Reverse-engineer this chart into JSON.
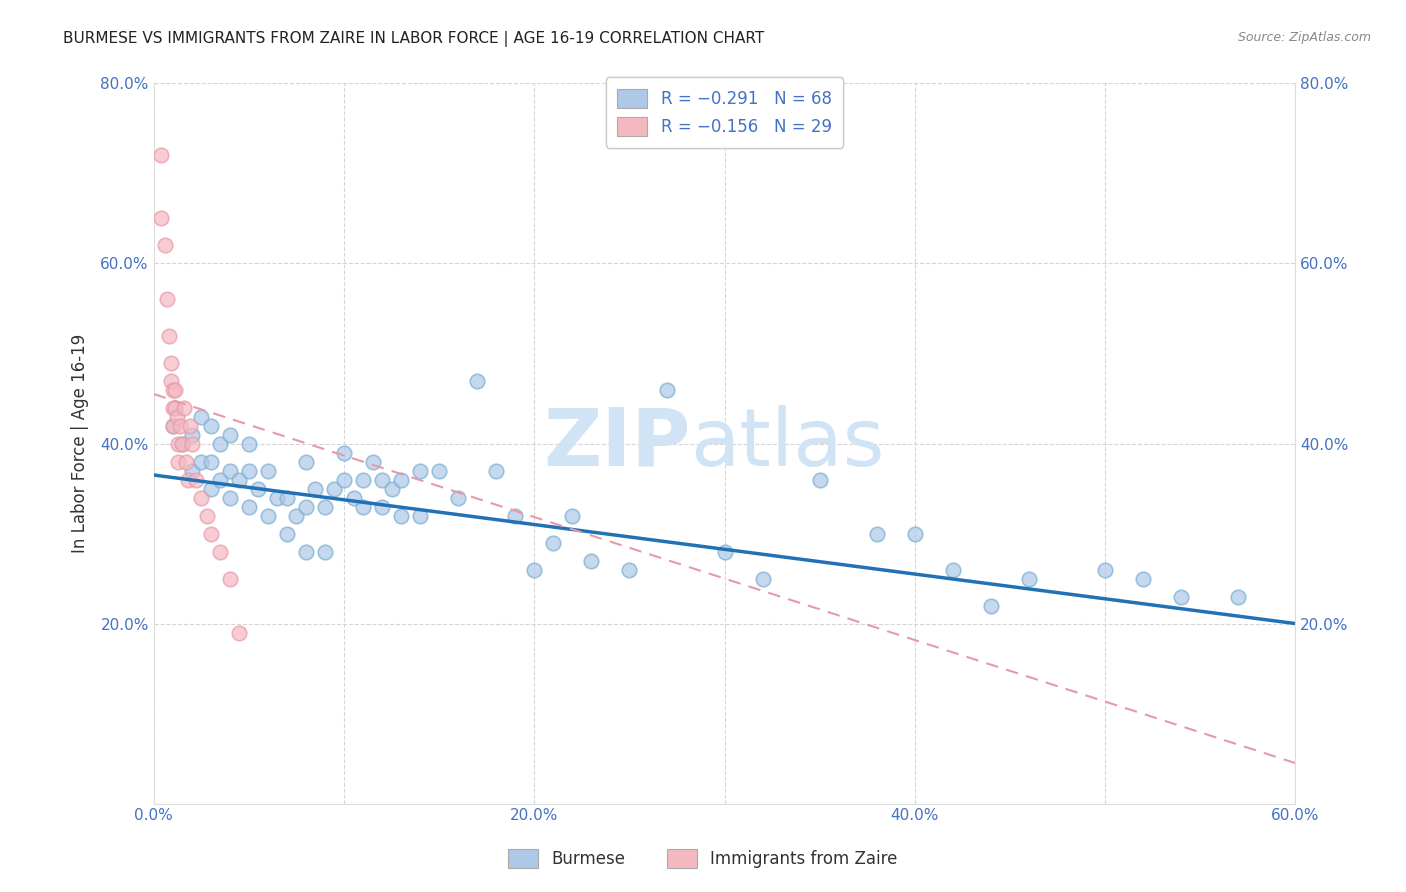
{
  "title": "BURMESE VS IMMIGRANTS FROM ZAIRE IN LABOR FORCE | AGE 16-19 CORRELATION CHART",
  "source": "Source: ZipAtlas.com",
  "ylabel": "In Labor Force | Age 16-19",
  "x_label_burmese": "Burmese",
  "x_label_zaire": "Immigrants from Zaire",
  "xlim": [
    0.0,
    0.6
  ],
  "ylim": [
    0.0,
    0.8
  ],
  "xticks": [
    0.0,
    0.1,
    0.2,
    0.3,
    0.4,
    0.5,
    0.6
  ],
  "yticks": [
    0.0,
    0.2,
    0.4,
    0.6,
    0.8
  ],
  "ytick_labels": [
    "",
    "20.0%",
    "40.0%",
    "60.0%",
    "80.0%"
  ],
  "xtick_labels": [
    "0.0%",
    "",
    "20.0%",
    "",
    "40.0%",
    "",
    "60.0%"
  ],
  "legend_blue_r": "R = −0.291",
  "legend_blue_n": "N = 68",
  "legend_pink_r": "R = −0.156",
  "legend_pink_n": "N = 29",
  "blue_color": "#aec8e8",
  "blue_edge_color": "#7aafd4",
  "blue_line_color": "#2171b5",
  "pink_color": "#f4b8c1",
  "pink_edge_color": "#e899a8",
  "pink_line_color": "#e899a8",
  "axis_color": "#4472c4",
  "watermark_zip": "ZIP",
  "watermark_atlas": "atlas",
  "watermark_color": "#d0e4f5",
  "blue_scatter_x": [
    0.01,
    0.015,
    0.02,
    0.02,
    0.025,
    0.025,
    0.03,
    0.03,
    0.03,
    0.035,
    0.035,
    0.04,
    0.04,
    0.04,
    0.045,
    0.05,
    0.05,
    0.05,
    0.055,
    0.06,
    0.06,
    0.065,
    0.07,
    0.07,
    0.075,
    0.08,
    0.08,
    0.08,
    0.085,
    0.09,
    0.09,
    0.095,
    0.1,
    0.1,
    0.105,
    0.11,
    0.11,
    0.115,
    0.12,
    0.12,
    0.125,
    0.13,
    0.13,
    0.14,
    0.14,
    0.15,
    0.16,
    0.17,
    0.18,
    0.19,
    0.2,
    0.21,
    0.22,
    0.23,
    0.25,
    0.27,
    0.3,
    0.32,
    0.35,
    0.38,
    0.4,
    0.42,
    0.44,
    0.46,
    0.5,
    0.52,
    0.54,
    0.57
  ],
  "blue_scatter_y": [
    0.42,
    0.4,
    0.37,
    0.41,
    0.38,
    0.43,
    0.35,
    0.38,
    0.42,
    0.36,
    0.4,
    0.34,
    0.37,
    0.41,
    0.36,
    0.33,
    0.37,
    0.4,
    0.35,
    0.32,
    0.37,
    0.34,
    0.3,
    0.34,
    0.32,
    0.28,
    0.33,
    0.38,
    0.35,
    0.28,
    0.33,
    0.35,
    0.36,
    0.39,
    0.34,
    0.33,
    0.36,
    0.38,
    0.33,
    0.36,
    0.35,
    0.32,
    0.36,
    0.32,
    0.37,
    0.37,
    0.34,
    0.47,
    0.37,
    0.32,
    0.26,
    0.29,
    0.32,
    0.27,
    0.26,
    0.46,
    0.28,
    0.25,
    0.36,
    0.3,
    0.3,
    0.26,
    0.22,
    0.25,
    0.26,
    0.25,
    0.23,
    0.23
  ],
  "pink_scatter_x": [
    0.004,
    0.004,
    0.006,
    0.007,
    0.008,
    0.009,
    0.009,
    0.01,
    0.01,
    0.01,
    0.011,
    0.011,
    0.012,
    0.013,
    0.013,
    0.014,
    0.015,
    0.016,
    0.017,
    0.018,
    0.019,
    0.02,
    0.022,
    0.025,
    0.028,
    0.03,
    0.035,
    0.04,
    0.045
  ],
  "pink_scatter_y": [
    0.72,
    0.65,
    0.62,
    0.56,
    0.52,
    0.49,
    0.47,
    0.46,
    0.44,
    0.42,
    0.46,
    0.44,
    0.43,
    0.4,
    0.38,
    0.42,
    0.4,
    0.44,
    0.38,
    0.36,
    0.42,
    0.4,
    0.36,
    0.34,
    0.32,
    0.3,
    0.28,
    0.25,
    0.19
  ],
  "blue_trend_x": [
    0.0,
    0.6
  ],
  "blue_trend_y": [
    0.365,
    0.2
  ],
  "pink_trend_x": [
    0.0,
    0.6
  ],
  "pink_trend_y": [
    0.455,
    0.045
  ]
}
